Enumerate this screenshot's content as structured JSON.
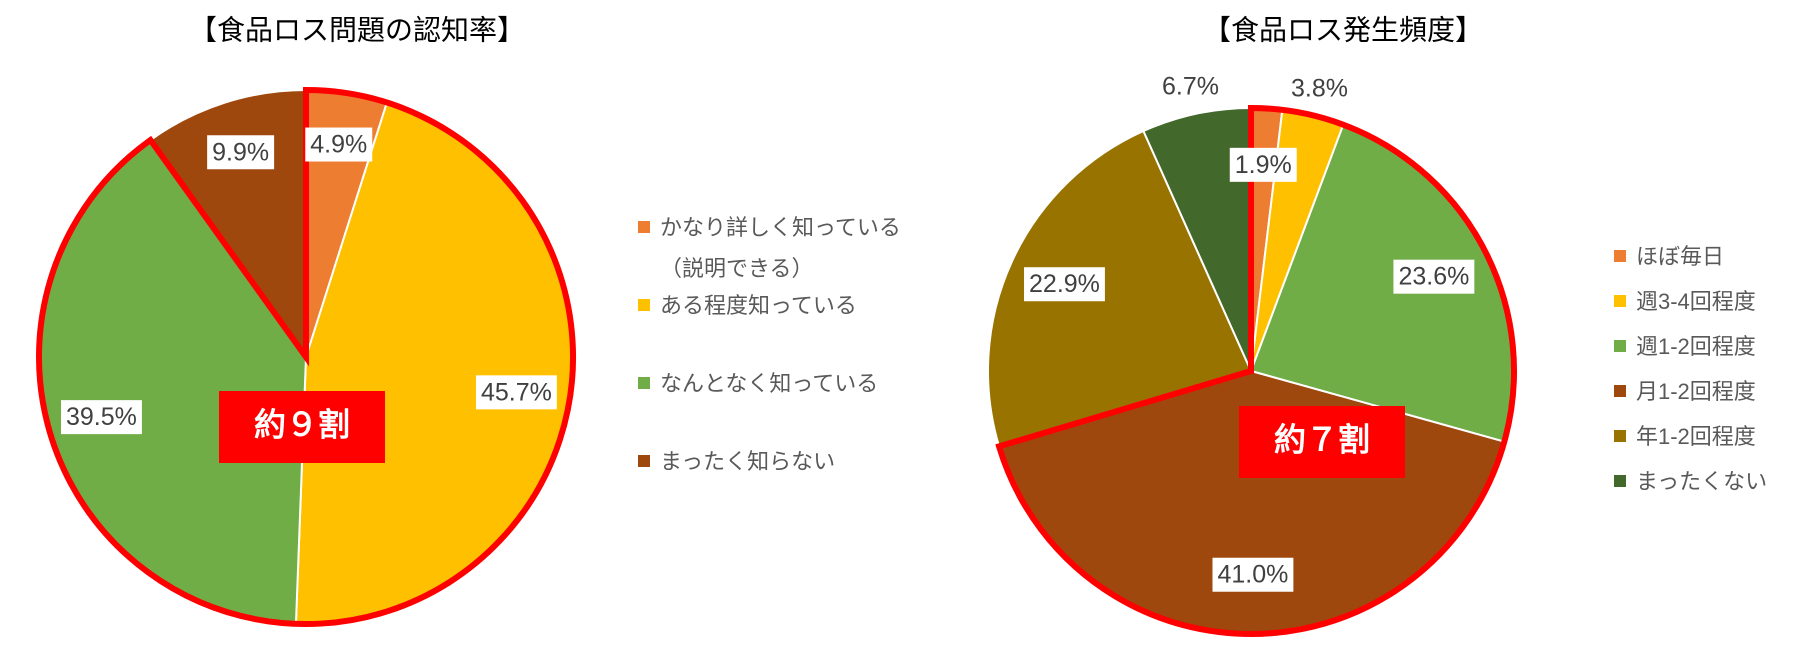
{
  "chart_data": [
    {
      "type": "pie",
      "title": "【食品ロス問題の認知率】",
      "categories": [
        "かなり詳しく知っている\n（説明できる）",
        "ある程度知っている",
        "なんとなく知っている",
        "まったく知らない"
      ],
      "values": [
        4.9,
        45.7,
        39.5,
        9.9
      ],
      "value_labels": [
        "4.9%",
        "45.7%",
        "39.5%",
        "9.9%"
      ],
      "colors": [
        "#ed7d31",
        "#ffc000",
        "#70ad47",
        "#9e480e"
      ],
      "annotation": "約９割",
      "highlight_slices": [
        0,
        1,
        2
      ],
      "highlight_color": "#ff0000",
      "legend": "right"
    },
    {
      "type": "pie",
      "title": "【食品ロス発生頻度】",
      "categories": [
        "ほぼ毎日",
        "週3-4回程度",
        "週1-2回程度",
        "月1-2回程度",
        "年1-2回程度",
        "まったくない"
      ],
      "values": [
        1.9,
        3.8,
        23.6,
        41.0,
        22.9,
        6.7
      ],
      "value_labels": [
        "1.9%",
        "3.8%",
        "23.6%",
        "41.0%",
        "22.9%",
        "6.7%"
      ],
      "colors": [
        "#ed7d31",
        "#ffc000",
        "#70ad47",
        "#9e480e",
        "#997300",
        "#43682b"
      ],
      "annotation": "約７割",
      "highlight_slices": [
        0,
        1,
        2,
        3
      ],
      "highlight_color": "#ff0000",
      "legend": "right"
    }
  ]
}
